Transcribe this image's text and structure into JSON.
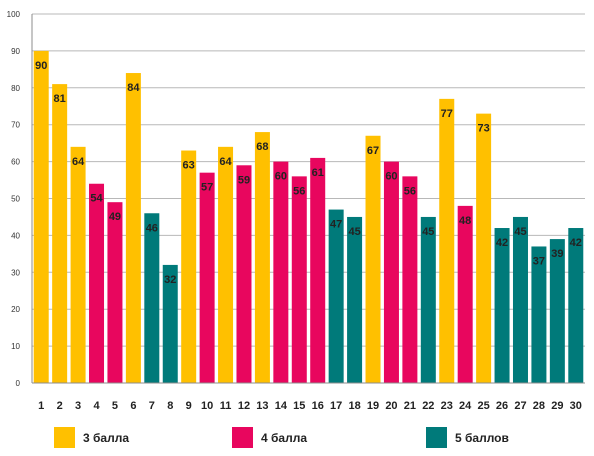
{
  "chart_data": {
    "type": "bar",
    "categories": [
      "1",
      "2",
      "3",
      "4",
      "5",
      "6",
      "7",
      "8",
      "9",
      "10",
      "11",
      "12",
      "13",
      "14",
      "15",
      "16",
      "17",
      "18",
      "19",
      "20",
      "21",
      "22",
      "23",
      "24",
      "25",
      "26",
      "27",
      "28",
      "29",
      "30"
    ],
    "values": [
      90,
      81,
      64,
      54,
      49,
      84,
      46,
      32,
      63,
      57,
      64,
      59,
      68,
      60,
      56,
      61,
      47,
      45,
      67,
      60,
      56,
      45,
      77,
      48,
      73,
      42,
      45,
      37,
      39,
      42
    ],
    "groups": [
      "3 балла",
      "3 балла",
      "3 балла",
      "4 балла",
      "4 балла",
      "3 балла",
      "5 баллов",
      "5 баллов",
      "3 балла",
      "4 балла",
      "3 балла",
      "4 балла",
      "3 балла",
      "4 балла",
      "4 балла",
      "4 балла",
      "5 баллов",
      "5 баллов",
      "3 балла",
      "4 балла",
      "4 балла",
      "5 баллов",
      "3 балла",
      "4 балла",
      "3 балла",
      "5 баллов",
      "5 баллов",
      "5 баллов",
      "5 баллов",
      "5 баллов"
    ],
    "series": [
      {
        "name": "3 балла",
        "color": "#FFC000"
      },
      {
        "name": "4 балла",
        "color": "#E8065E"
      },
      {
        "name": "5 баллов",
        "color": "#007A7A"
      }
    ],
    "ylim": [
      0,
      100
    ],
    "yticks": [
      "0",
      "10",
      "20",
      "30",
      "40",
      "50",
      "60",
      "70",
      "80",
      "90",
      "100"
    ],
    "grid": true,
    "legend_position": "bottom"
  }
}
